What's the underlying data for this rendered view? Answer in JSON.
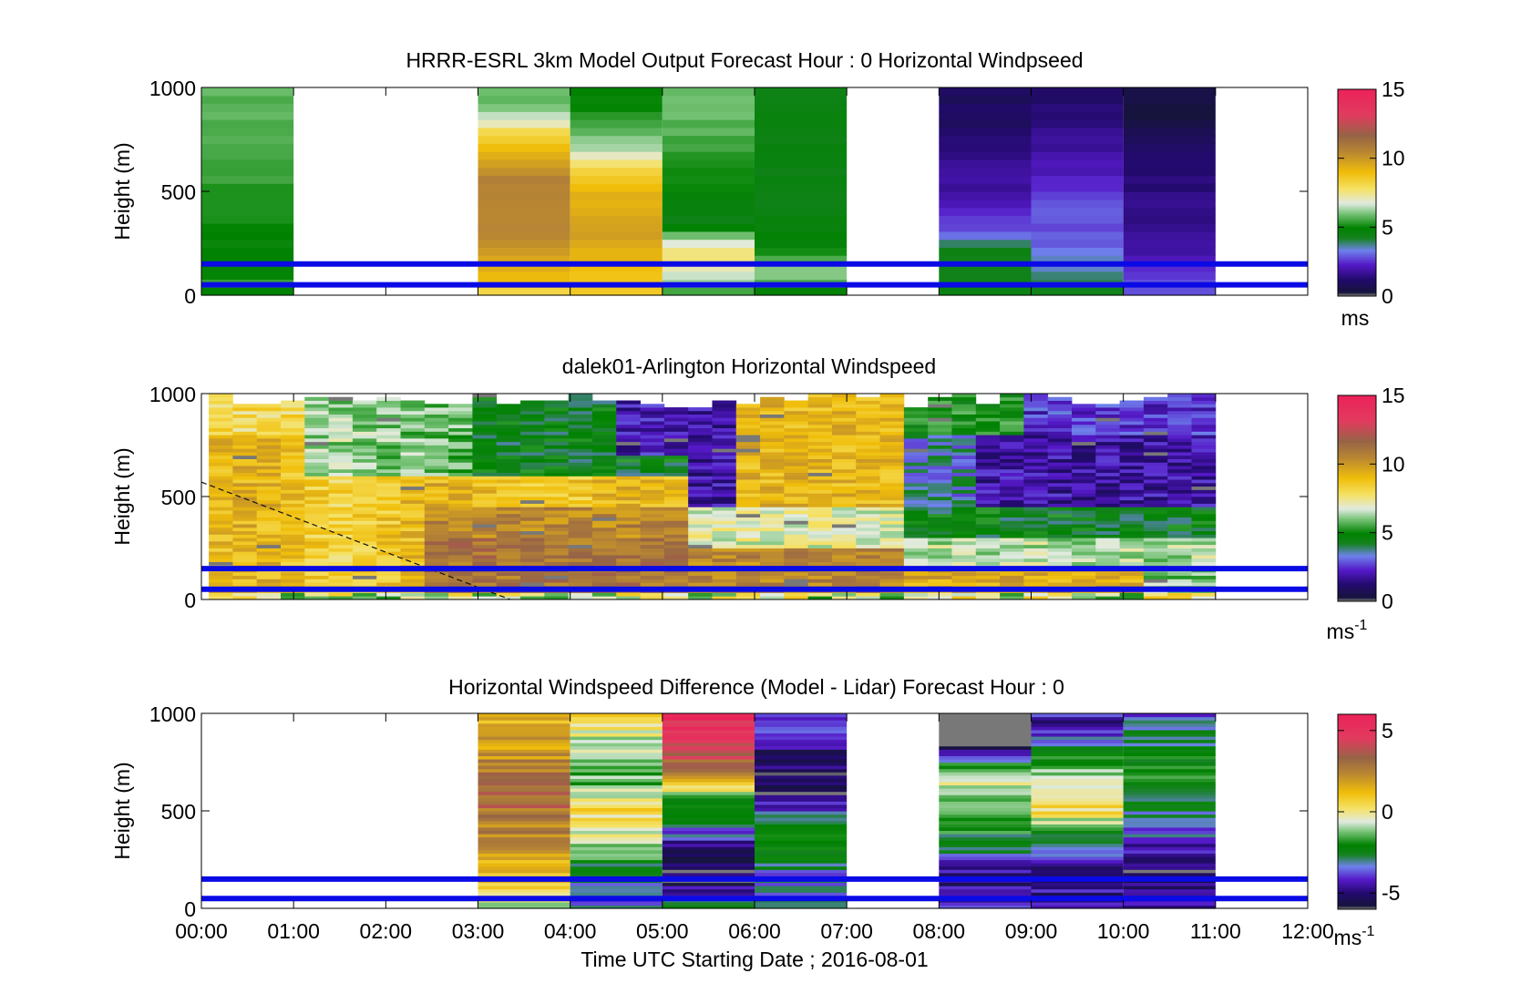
{
  "figure": {
    "xlabel": "Time UTC  Starting Date ; 2016-08-01",
    "ylabel": "Height (m)",
    "x_ticks": [
      "00:00",
      "01:00",
      "02:00",
      "03:00",
      "04:00",
      "05:00",
      "06:00",
      "07:00",
      "08:00",
      "09:00",
      "10:00",
      "11:00",
      "12:00"
    ],
    "y_ticks": [
      "0",
      "500",
      "1000"
    ],
    "reference_lines_m": [
      50,
      150
    ],
    "reference_line_color": "#0a0ae6"
  },
  "chart_data": [
    {
      "type": "heatmap",
      "title": "HRRR-ESRL 3km Model Output   Forecast Hour : 0 Horizontal Windpseed",
      "xlim_hours": [
        0,
        12
      ],
      "ylim": [
        0,
        1000
      ],
      "colorbar": {
        "ticks": [
          "0",
          "5",
          "10",
          "15"
        ],
        "tick_values": [
          0,
          5,
          10,
          15
        ],
        "range": [
          0,
          15
        ],
        "unit_main": "ms",
        "unit_sup": ""
      },
      "columns": [
        {
          "start": 0,
          "end": 1,
          "profile": [
            [
              0,
              4.5
            ],
            [
              40,
              5.5
            ],
            [
              120,
              4.8
            ],
            [
              400,
              5.2
            ],
            [
              800,
              5.7
            ],
            [
              1000,
              5.8
            ]
          ]
        },
        {
          "start": 3,
          "end": 4,
          "profile": [
            [
              0,
              8.0
            ],
            [
              60,
              9.0
            ],
            [
              150,
              9.5
            ],
            [
              300,
              10.5
            ],
            [
              550,
              10.8
            ],
            [
              650,
              9.8
            ],
            [
              760,
              8.5
            ],
            [
              850,
              6.8
            ],
            [
              920,
              5.8
            ],
            [
              1000,
              5.8
            ]
          ]
        },
        {
          "start": 4,
          "end": 5,
          "profile": [
            [
              0,
              8.5
            ],
            [
              150,
              9.0
            ],
            [
              300,
              10.0
            ],
            [
              500,
              9.2
            ],
            [
              620,
              8.0
            ],
            [
              700,
              6.5
            ],
            [
              790,
              5.8
            ],
            [
              880,
              5.0
            ],
            [
              1000,
              4.8
            ]
          ]
        },
        {
          "start": 5,
          "end": 6,
          "profile": [
            [
              0,
              5.5
            ],
            [
              100,
              6.5
            ],
            [
              200,
              8.0
            ],
            [
              260,
              6.5
            ],
            [
              350,
              4.5
            ],
            [
              600,
              5.2
            ],
            [
              850,
              5.8
            ],
            [
              1000,
              6.0
            ]
          ]
        },
        {
          "start": 6,
          "end": 7,
          "profile": [
            [
              0,
              4.5
            ],
            [
              120,
              6.5
            ],
            [
              200,
              5.0
            ],
            [
              350,
              4.5
            ],
            [
              700,
              4.5
            ],
            [
              1000,
              4.5
            ]
          ]
        },
        {
          "start": 8,
          "end": 9,
          "profile": [
            [
              0,
              4.5
            ],
            [
              200,
              4.5
            ],
            [
              300,
              3.0
            ],
            [
              450,
              2.0
            ],
            [
              650,
              1.5
            ],
            [
              850,
              1.0
            ],
            [
              1000,
              0.8
            ]
          ]
        },
        {
          "start": 9,
          "end": 10,
          "profile": [
            [
              0,
              4.5
            ],
            [
              150,
              3.5
            ],
            [
              300,
              2.8
            ],
            [
              450,
              3.0
            ],
            [
              600,
              2.0
            ],
            [
              800,
              1.5
            ],
            [
              1000,
              1.0
            ]
          ]
        },
        {
          "start": 10,
          "end": 11,
          "profile": [
            [
              0,
              3.0
            ],
            [
              200,
              2.0
            ],
            [
              400,
              1.5
            ],
            [
              700,
              1.0
            ],
            [
              800,
              0.8
            ],
            [
              840,
              0.0
            ],
            [
              1000,
              0.5
            ]
          ]
        }
      ]
    },
    {
      "type": "heatmap",
      "title": "dalek01-Arlington  Horizontal Windspeed",
      "xlim_hours": [
        0,
        12
      ],
      "ylim": [
        0,
        1000
      ],
      "colorbar": {
        "ticks": [
          "0",
          "5",
          "10",
          "15"
        ],
        "tick_values": [
          0,
          5,
          10,
          15
        ],
        "range": [
          0,
          15
        ],
        "unit_main": "ms",
        "unit_sup": "-1"
      },
      "lidar": {
        "start": 0.08,
        "end": 11.0,
        "ncols": 42
      },
      "annotation_line": {
        "from": [
          0,
          570
        ],
        "to": [
          3.35,
          0
        ]
      }
    },
    {
      "type": "heatmap",
      "title": "Horizontal Windspeed Difference (Model - Lidar) Forecast Hour : 0",
      "xlim_hours": [
        0,
        12
      ],
      "ylim": [
        0,
        1000
      ],
      "colorbar": {
        "ticks": [
          "-5",
          "0",
          "5"
        ],
        "tick_values": [
          -5,
          0,
          5
        ],
        "range": [
          -6,
          6
        ],
        "unit_main": "ms",
        "unit_sup": "-1"
      },
      "columns": [
        {
          "start": 3,
          "end": 4,
          "profile": [
            [
              0,
              -1
            ],
            [
              100,
              0.5
            ],
            [
              200,
              1.5
            ],
            [
              400,
              2.5
            ],
            [
              600,
              3.5
            ],
            [
              800,
              2.0
            ],
            [
              950,
              1.5
            ],
            [
              1000,
              1.0
            ]
          ]
        },
        {
          "start": 4,
          "end": 5,
          "profile": [
            [
              0,
              -3.5
            ],
            [
              200,
              -2.5
            ],
            [
              350,
              -0.8
            ],
            [
              500,
              0.5
            ],
            [
              650,
              -1.5
            ],
            [
              800,
              -1.0
            ],
            [
              950,
              0.0
            ],
            [
              1000,
              0.5
            ]
          ]
        },
        {
          "start": 5,
          "end": 6,
          "profile": [
            [
              0,
              -3
            ],
            [
              150,
              -5.5
            ],
            [
              300,
              -5
            ],
            [
              450,
              -2.5
            ],
            [
              550,
              -2
            ],
            [
              700,
              3.0
            ],
            [
              850,
              4.5
            ],
            [
              1000,
              5.5
            ]
          ]
        },
        {
          "start": 6,
          "end": 7,
          "profile": [
            [
              0,
              -3
            ],
            [
              150,
              -3.5
            ],
            [
              300,
              -2
            ],
            [
              450,
              -3
            ],
            [
              600,
              -5.5
            ],
            [
              800,
              -5
            ],
            [
              950,
              -4
            ],
            [
              1000,
              -4.5
            ]
          ]
        },
        {
          "start": 8,
          "end": 9,
          "profile": [
            [
              0,
              -4
            ],
            [
              150,
              -5
            ],
            [
              300,
              -3
            ],
            [
              500,
              -1
            ],
            [
              700,
              -0.5
            ],
            [
              820,
              -5.5
            ],
            [
              840,
              -8
            ],
            [
              1000,
              -8
            ]
          ]
        },
        {
          "start": 9,
          "end": 10,
          "profile": [
            [
              0,
              -4.5
            ],
            [
              200,
              -5
            ],
            [
              350,
              -3
            ],
            [
              500,
              0.5
            ],
            [
              650,
              -1
            ],
            [
              800,
              -2
            ],
            [
              950,
              -5
            ],
            [
              1000,
              -4
            ]
          ]
        },
        {
          "start": 10,
          "end": 11,
          "profile": [
            [
              0,
              -4.5
            ],
            [
              200,
              -5.5
            ],
            [
              350,
              -4
            ],
            [
              450,
              -3
            ],
            [
              700,
              -1.5
            ],
            [
              900,
              -3
            ],
            [
              1000,
              -3.5
            ]
          ]
        }
      ]
    }
  ]
}
